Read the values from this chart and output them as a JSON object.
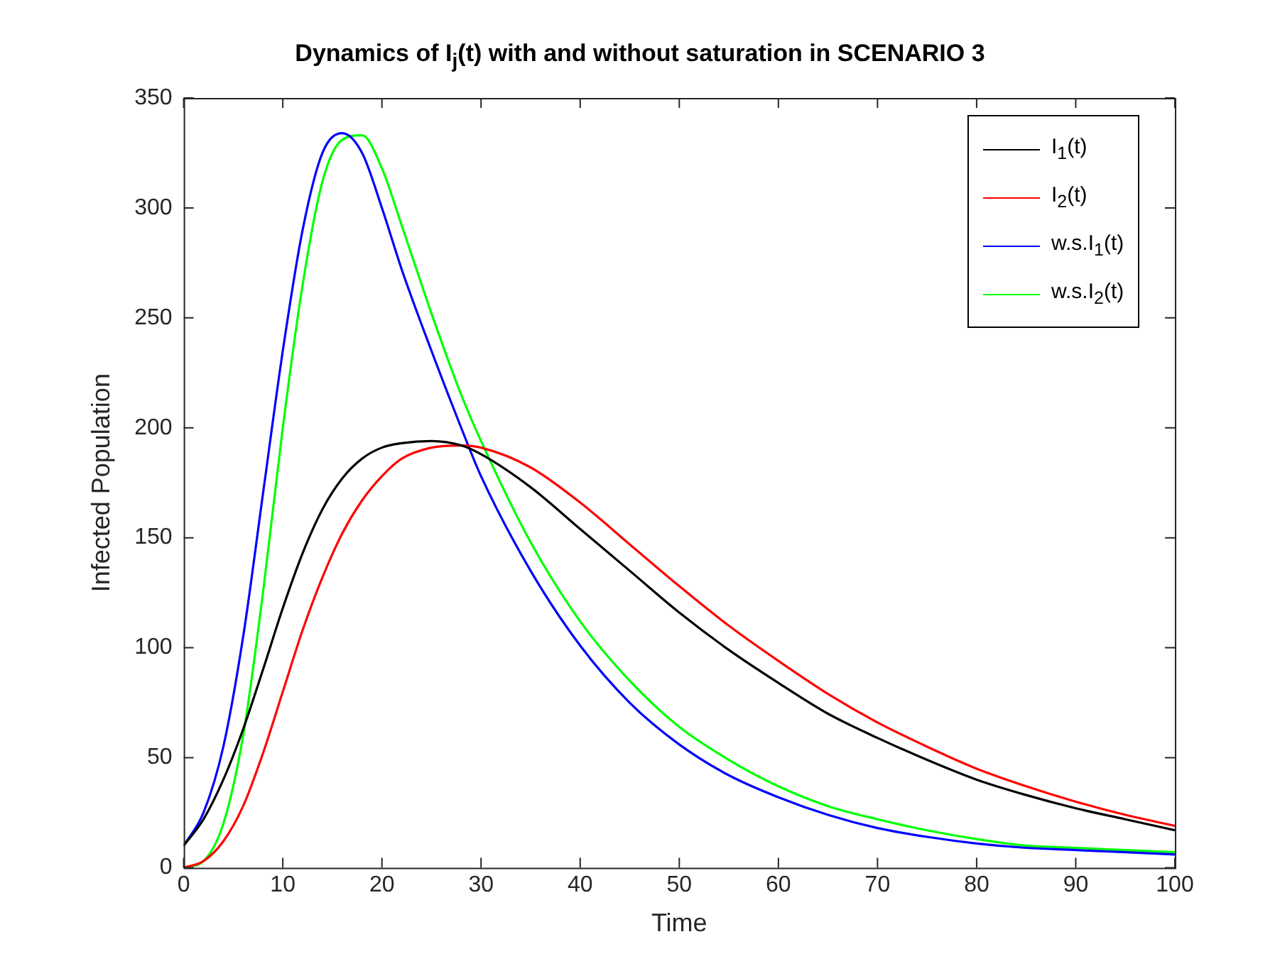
{
  "chart_data": {
    "type": "line",
    "title": "Dynamics of I$_{j}$(t) with and without saturation in SCENARIO 3",
    "xlabel": "Time",
    "ylabel": "Infected Population",
    "x": [
      0,
      2,
      4,
      6,
      8,
      10,
      12,
      14,
      16,
      18,
      20,
      22,
      25,
      28,
      30,
      35,
      40,
      45,
      50,
      55,
      60,
      65,
      70,
      75,
      80,
      85,
      90,
      95,
      100
    ],
    "series": [
      {
        "name": "I$_{1}$(t)",
        "color": "#000000",
        "values": [
          10,
          22,
          40,
          63,
          90,
          118,
          143,
          163,
          177,
          186,
          191,
          193,
          194,
          192,
          188,
          173,
          154,
          135,
          116,
          99,
          84,
          70,
          59,
          49,
          40,
          33,
          27,
          22,
          17
        ]
      },
      {
        "name": "I$_{2}$(t)",
        "color": "#ff0000",
        "values": [
          0,
          3,
          12,
          28,
          52,
          80,
          108,
          132,
          152,
          167,
          178,
          186,
          191,
          192,
          191,
          182,
          166,
          147,
          128,
          110,
          94,
          79,
          66,
          55,
          45,
          37,
          30,
          24,
          19
        ]
      },
      {
        "name": "w.s.I$_{1}$(t)",
        "color": "#0000ff",
        "values": [
          10,
          25,
          55,
          105,
          170,
          235,
          290,
          325,
          334,
          325,
          300,
          272,
          235,
          200,
          178,
          135,
          101,
          75,
          56,
          42,
          32,
          24,
          18,
          14,
          11,
          9,
          8,
          7,
          6
        ]
      },
      {
        "name": "w.s.I$_{2}$(t)",
        "color": "#00ff00",
        "values": [
          0,
          3,
          20,
          60,
          125,
          200,
          265,
          312,
          331,
          333,
          318,
          292,
          252,
          215,
          194,
          148,
          112,
          85,
          64,
          49,
          37,
          28,
          22,
          17,
          13,
          10,
          9,
          8,
          7
        ]
      }
    ],
    "xlim": [
      0,
      100
    ],
    "xticks": [
      0,
      10,
      20,
      30,
      40,
      50,
      60,
      70,
      80,
      90,
      100
    ],
    "ylim": [
      0,
      350
    ],
    "yticks": [
      0,
      50,
      100,
      150,
      200,
      250,
      300,
      350
    ],
    "grid": false,
    "legend": "top right",
    "marker": "none",
    "line_style": "solid"
  }
}
